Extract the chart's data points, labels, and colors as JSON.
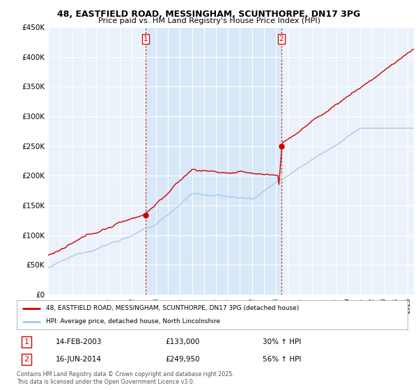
{
  "title_line1": "48, EASTFIELD ROAD, MESSINGHAM, SCUNTHORPE, DN17 3PG",
  "title_line2": "Price paid vs. HM Land Registry's House Price Index (HPI)",
  "ylabel_ticks": [
    "£0",
    "£50K",
    "£100K",
    "£150K",
    "£200K",
    "£250K",
    "£300K",
    "£350K",
    "£400K",
    "£450K"
  ],
  "ytick_values": [
    0,
    50000,
    100000,
    150000,
    200000,
    250000,
    300000,
    350000,
    400000,
    450000
  ],
  "hpi_color": "#A8C8E8",
  "price_color": "#CC0000",
  "shade_color": "#D8E8F8",
  "sale1_year": 2003.12,
  "sale1_price": 133000,
  "sale2_year": 2014.46,
  "sale2_price": 249950,
  "legend_line1": "48, EASTFIELD ROAD, MESSINGHAM, SCUNTHORPE, DN17 3PG (detached house)",
  "legend_line2": "HPI: Average price, detached house, North Lincolnshire",
  "annotation1_date": "14-FEB-2003",
  "annotation1_price": "£133,000",
  "annotation1_hpi": "30% ↑ HPI",
  "annotation2_date": "16-JUN-2014",
  "annotation2_price": "£249,950",
  "annotation2_hpi": "56% ↑ HPI",
  "footer": "Contains HM Land Registry data © Crown copyright and database right 2025.\nThis data is licensed under the Open Government Licence v3.0.",
  "bg_color": "#FFFFFF",
  "plot_bg_color": "#EBF2FA"
}
